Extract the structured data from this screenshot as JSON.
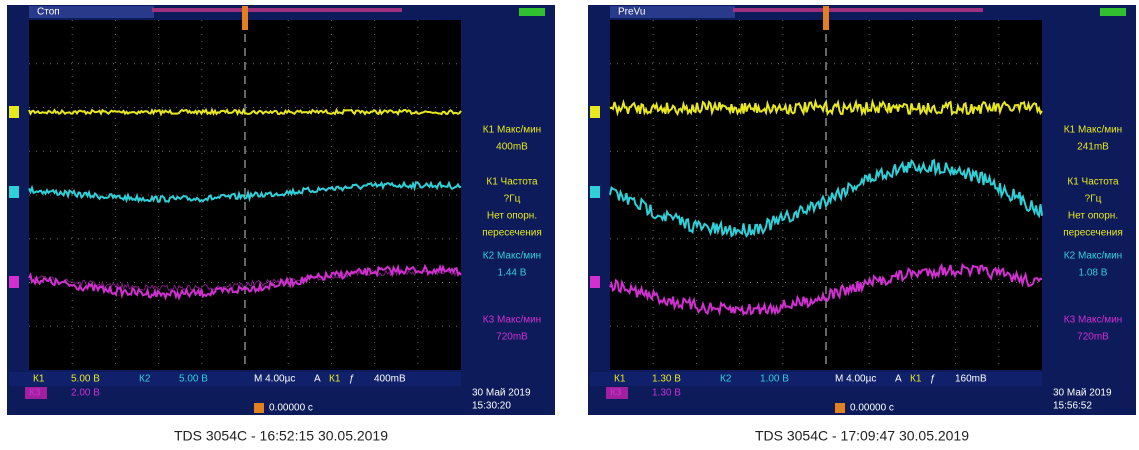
{
  "screens": [
    {
      "status": "Стоп",
      "readouts": [
        {
          "text": "К1 Макс/мин",
          "color": "#e8e820"
        },
        {
          "text": "400mВ",
          "color": "#e8e820"
        },
        {
          "text": "К1 Частота",
          "color": "#e8e820"
        },
        {
          "text": "?Гц",
          "color": "#e8e820"
        },
        {
          "text": "Нет опорн.",
          "color": "#e8e820"
        },
        {
          "text": "пересечения",
          "color": "#e8e820"
        },
        {
          "text": "К2 Макс/мин",
          "color": "#30d0d8"
        },
        {
          "text": "1.44 В",
          "color": "#30d0d8"
        },
        {
          "text": "К3 Макс/мин",
          "color": "#d030d0"
        },
        {
          "text": "720mВ",
          "color": "#d030d0"
        }
      ],
      "bottom": [
        {
          "text": "К1",
          "color": "#e8e820"
        },
        {
          "text": "5.00 В",
          "color": "#e8e820"
        },
        {
          "text": "К2",
          "color": "#30d0d8"
        },
        {
          "text": "5.00 В",
          "color": "#30d0d8"
        },
        {
          "text": "M 4.00µс",
          "color": "#ffffff"
        },
        {
          "text": "A",
          "color": "#ffffff"
        },
        {
          "text": "К1",
          "color": "#e8e820"
        },
        {
          "text": "ƒ",
          "color": "#ffffff"
        },
        {
          "text": "400mВ",
          "color": "#ffffff"
        }
      ],
      "bottom2": [
        {
          "text": "К3",
          "color": "#d030d0"
        },
        {
          "text": "2.00 В",
          "color": "#d030d0"
        }
      ],
      "trigger_pos": "0.00000 с",
      "date": "30 Май 2019",
      "time": "15:30:20",
      "caption": "TDS 3054C - 16:52:15   30.05.2019"
    },
    {
      "status": "PreVu",
      "readouts": [
        {
          "text": "К1 Макс/мин",
          "color": "#e8e820"
        },
        {
          "text": "241mВ",
          "color": "#e8e820"
        },
        {
          "text": "К1 Частота",
          "color": "#e8e820"
        },
        {
          "text": "?Гц",
          "color": "#e8e820"
        },
        {
          "text": "Нет опорн.",
          "color": "#e8e820"
        },
        {
          "text": "пересечения",
          "color": "#e8e820"
        },
        {
          "text": "К2 Макс/мин",
          "color": "#30d0d8"
        },
        {
          "text": "1.08 В",
          "color": "#30d0d8"
        },
        {
          "text": "К3 Макс/мин",
          "color": "#d030d0"
        },
        {
          "text": "720mВ",
          "color": "#d030d0"
        }
      ],
      "bottom": [
        {
          "text": "К1",
          "color": "#e8e820"
        },
        {
          "text": "1.30 В",
          "color": "#e8e820"
        },
        {
          "text": "К2",
          "color": "#30d0d8"
        },
        {
          "text": "1.00 В",
          "color": "#30d0d8"
        },
        {
          "text": "M 4.00µс",
          "color": "#ffffff"
        },
        {
          "text": "A",
          "color": "#ffffff"
        },
        {
          "text": "К1",
          "color": "#e8e820"
        },
        {
          "text": "ƒ",
          "color": "#ffffff"
        },
        {
          "text": "160mВ",
          "color": "#ffffff"
        }
      ],
      "bottom2": [
        {
          "text": "К3",
          "color": "#d030d0"
        },
        {
          "text": "1.30 В",
          "color": "#d030d0"
        }
      ],
      "trigger_pos": "0.00000 с",
      "date": "30 Май 2019",
      "time": "15:56:52",
      "caption": "TDS 3054C - 17:09:47   30.05.2019"
    }
  ]
}
